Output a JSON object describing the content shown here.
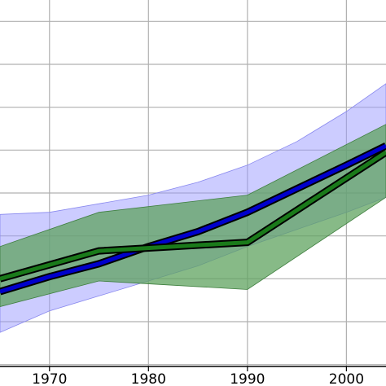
{
  "chart_data": {
    "type": "line",
    "title": "",
    "xlabel": "",
    "ylabel": "",
    "x_ticks": [
      "1970",
      "1980",
      "1990",
      "2000"
    ],
    "x_tick_values": [
      1970,
      1980,
      1990,
      2000
    ],
    "y_gridlines": [
      0,
      1,
      2,
      3,
      4,
      5,
      6,
      7,
      8
    ],
    "y_tick_labels_visible": false,
    "xlim": [
      1965,
      2004
    ],
    "ylim": [
      -0.5,
      8.5
    ],
    "grid": true,
    "colors": {
      "blue_band": "#9999ff",
      "blue_line": "#0000cc",
      "green_band": "#5fa35f",
      "green_line": "#1a7a1a",
      "line_outline": "#000000",
      "grid": "#b0b0b0"
    },
    "series": [
      {
        "color": "blue",
        "x": [
          1965,
          1970,
          1975,
          1980,
          1985,
          1990,
          1995,
          2000,
          2004
        ],
        "y": [
          1.7,
          2.05,
          2.35,
          2.75,
          3.1,
          3.55,
          4.1,
          4.65,
          5.1
        ],
        "lower": [
          0.75,
          1.25,
          1.6,
          1.95,
          2.3,
          2.75,
          3.15,
          3.55,
          3.9
        ],
        "upper": [
          3.5,
          3.55,
          3.75,
          3.95,
          4.25,
          4.65,
          5.2,
          5.9,
          6.55
        ]
      },
      {
        "color": "green",
        "x": [
          1965,
          1975,
          1990,
          2004
        ],
        "y": [
          2.0,
          2.65,
          2.85,
          4.95
        ],
        "lower": [
          1.35,
          1.95,
          1.75,
          3.9
        ],
        "upper": [
          2.75,
          3.55,
          3.95,
          5.6
        ]
      }
    ]
  }
}
